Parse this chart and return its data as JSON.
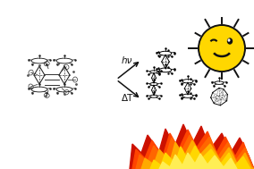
{
  "background_color": "#ffffff",
  "arrow_hv_label": "hν",
  "arrow_dt_label": "ΔT",
  "sun_color": "#FFD700",
  "sun_outline": "#111111",
  "arrow_color": "#111111",
  "fig_width": 2.84,
  "fig_height": 1.89,
  "dpi": 100
}
